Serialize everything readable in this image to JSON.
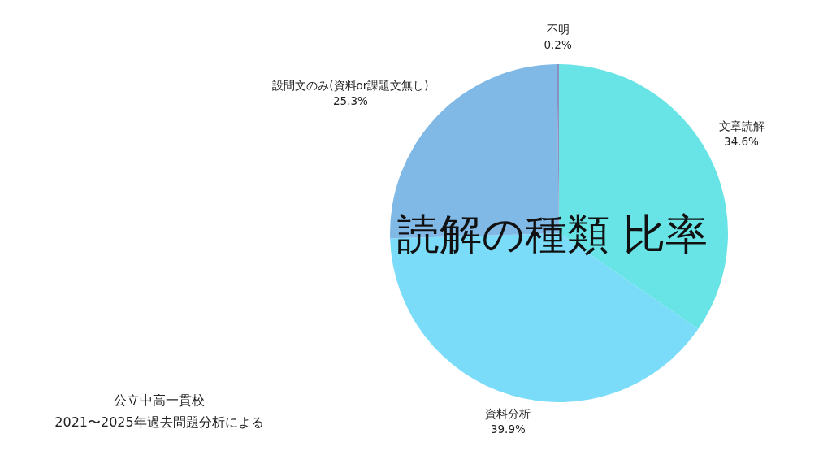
{
  "chart_data": {
    "type": "pie",
    "title": "読解の種類 比率",
    "categories": [
      "文章読解",
      "資料分析",
      "設問文のみ(資料or課題文無し)",
      "不明"
    ],
    "values": [
      34.6,
      39.9,
      25.3,
      0.2
    ],
    "colors": [
      "#68e3e6",
      "#7adcf9",
      "#80b9e6",
      "#8c8ec4"
    ],
    "value_labels": [
      "34.6%",
      "39.9%",
      "25.3%",
      "0.2%"
    ],
    "annotations": [
      "公立中高一貫校",
      "2021〜2025年過去問題分析による"
    ]
  }
}
